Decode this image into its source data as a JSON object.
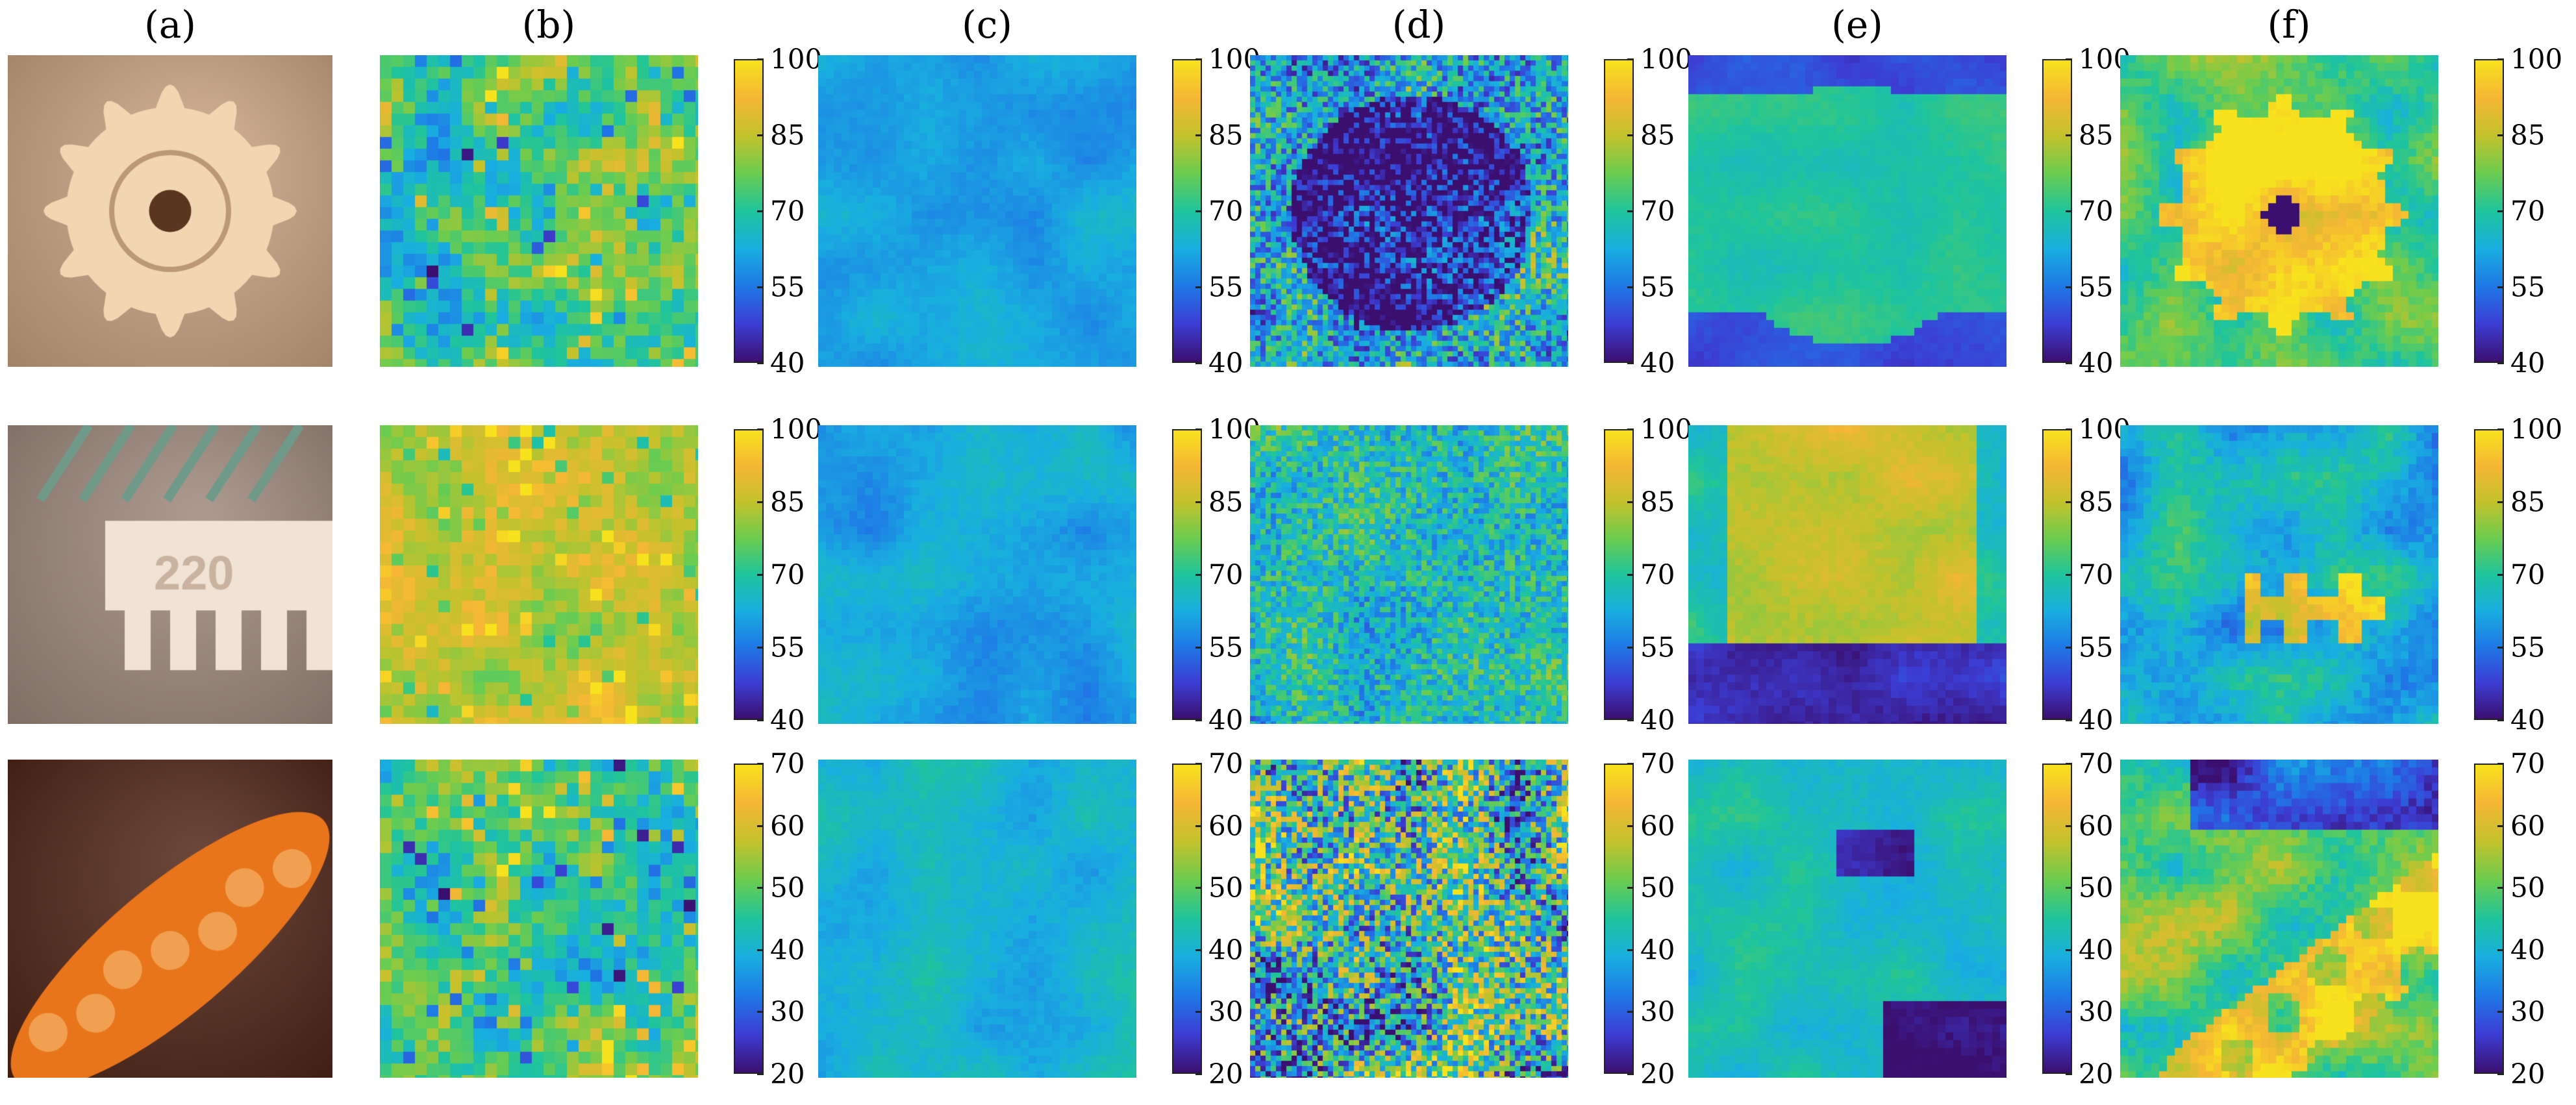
{
  "figure": {
    "column_labels": [
      "(a)",
      "(b)",
      "(c)",
      "(d)",
      "(e)",
      "(f)"
    ],
    "colormap": [
      "#3b0f70",
      "#3c3dd4",
      "#1f78e6",
      "#19aee0",
      "#1fc49c",
      "#6bcc4f",
      "#c3c22c",
      "#f5b635",
      "#f7e21d"
    ],
    "rows": [
      {
        "name": "gear",
        "colorbar_ticks": [
          "100",
          "85",
          "70",
          "55",
          "40"
        ],
        "photo_colors": {
          "background": "#c8a07e",
          "object": "#f2d6b2",
          "hole": "#5a3520"
        },
        "maps": [
          {
            "column": "(b)",
            "base": 0.55,
            "variation": 0.4,
            "pattern": "blocky"
          },
          {
            "column": "(c)",
            "base": 0.35,
            "variation": 0.12,
            "pattern": "smooth"
          },
          {
            "column": "(d)",
            "base": 0.04,
            "variation": 0.3,
            "pattern": "noisy-border"
          },
          {
            "column": "(e)",
            "base": 0.5,
            "variation": 0.1,
            "pattern": "flat-border"
          },
          {
            "column": "(f)",
            "base": 0.55,
            "variation": 0.3,
            "pattern": "gear"
          }
        ]
      },
      {
        "name": "chip",
        "colorbar_ticks": [
          "100",
          "85",
          "70",
          "55",
          "40"
        ],
        "photo_colors": {
          "background": "#9a8478",
          "object": "#f0e2d4",
          "hole": "#6d5a55"
        },
        "maps": [
          {
            "column": "(b)",
            "base": 0.75,
            "variation": 0.25,
            "pattern": "blocky"
          },
          {
            "column": "(c)",
            "base": 0.35,
            "variation": 0.15,
            "pattern": "smooth"
          },
          {
            "column": "(d)",
            "base": 0.45,
            "variation": 0.2,
            "pattern": "noisy"
          },
          {
            "column": "(e)",
            "base": 0.78,
            "variation": 0.15,
            "pattern": "chip-bottom"
          },
          {
            "column": "(f)",
            "base": 0.4,
            "variation": 0.3,
            "pattern": "chip"
          }
        ]
      },
      {
        "name": "pod",
        "colorbar_ticks": [
          "70",
          "60",
          "50",
          "40",
          "30",
          "20"
        ],
        "photo_colors": {
          "background": "#4a1e10",
          "object": "#e8751c",
          "hole": "#f0a050"
        },
        "maps": [
          {
            "column": "(b)",
            "base": 0.55,
            "variation": 0.4,
            "pattern": "blocky"
          },
          {
            "column": "(c)",
            "base": 0.4,
            "variation": 0.15,
            "pattern": "smooth"
          },
          {
            "column": "(d)",
            "base": 0.5,
            "variation": 0.45,
            "pattern": "noisy"
          },
          {
            "column": "(e)",
            "base": 0.45,
            "variation": 0.15,
            "pattern": "flat-dark"
          },
          {
            "column": "(f)",
            "base": 0.6,
            "variation": 0.35,
            "pattern": "pod"
          }
        ]
      }
    ]
  }
}
